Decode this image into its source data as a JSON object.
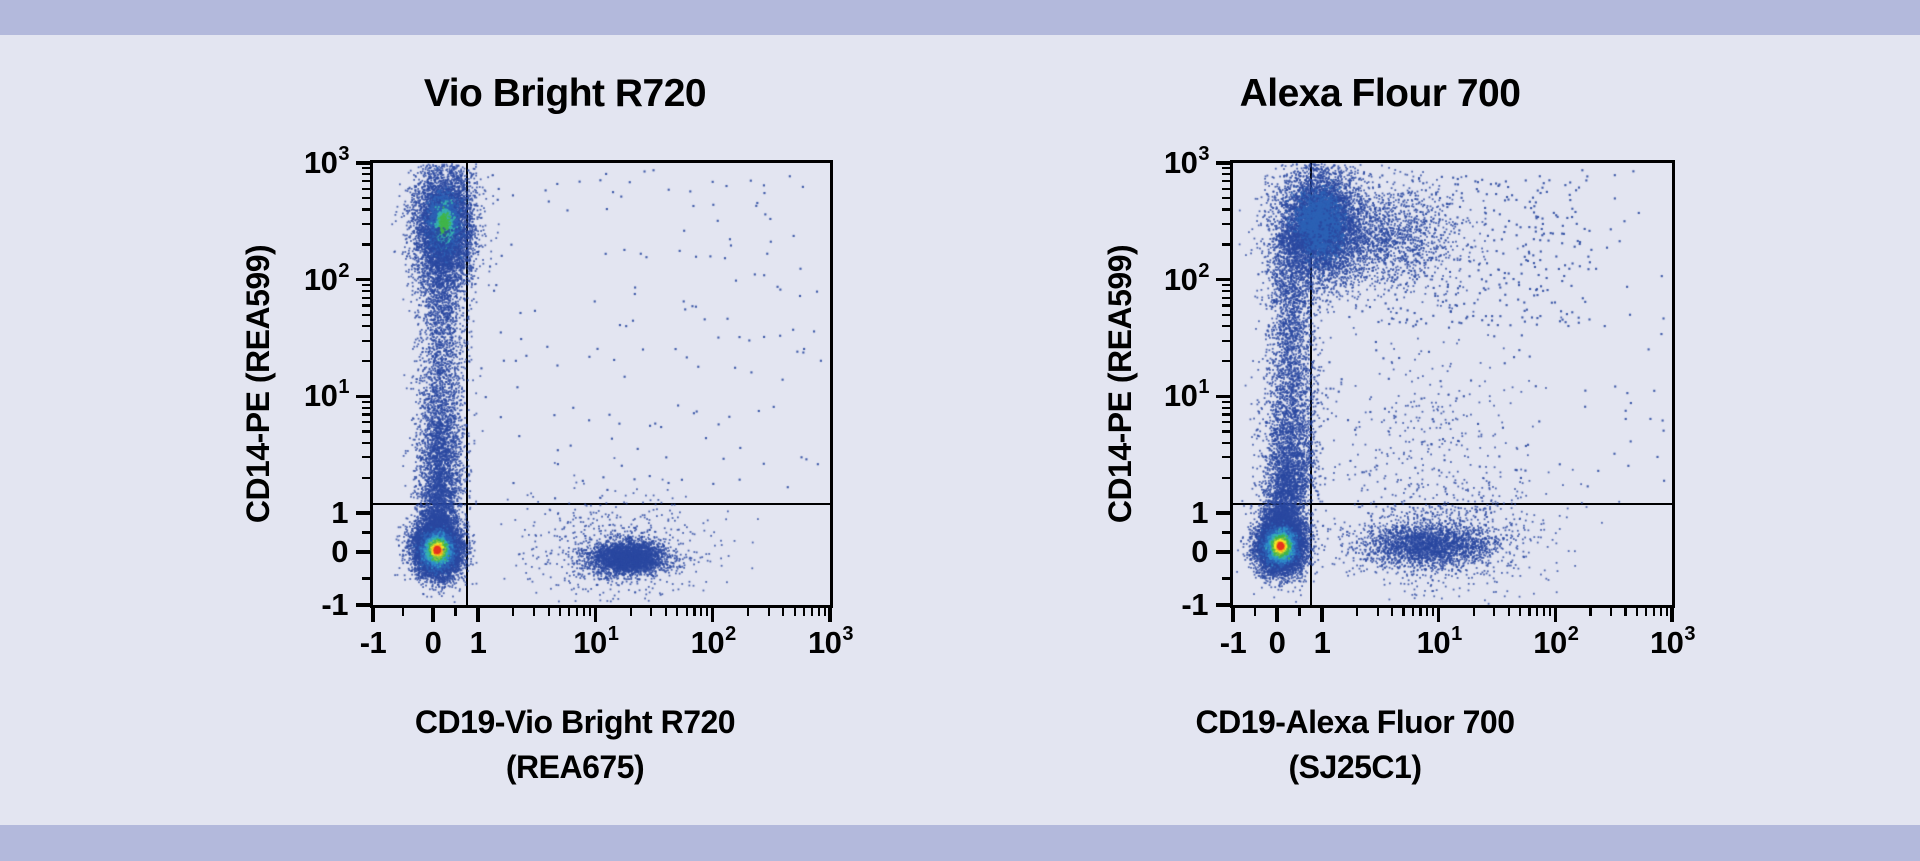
{
  "figure": {
    "background": "#e3e5f1",
    "banner_color": "#b3b9dc",
    "axis_color": "#000000",
    "dot_color": "#2a49a0",
    "density_scale": [
      "#2a49a0",
      "#2d62b5",
      "#2f8ecb",
      "#37b3b0",
      "#41b54a",
      "#8fc63f",
      "#f3eb27",
      "#f6a21f",
      "#e8351f"
    ]
  },
  "chart_data": [
    {
      "type": "scatter",
      "flavor": "flow-cytometry-density-dot-plot",
      "title": "Vio Bright R720",
      "xlabel_lines": [
        "CD19-Vio Bright R720",
        "(REA675)"
      ],
      "ylabel": "CD14-PE (REA599)",
      "scale": "biexponential",
      "x_range": [
        -1,
        1000
      ],
      "y_range": [
        -1,
        1000
      ],
      "grid": false,
      "legend": false,
      "x_ticks": [
        {
          "label": "-1",
          "value": -1
        },
        {
          "label": "0",
          "value": 0
        },
        {
          "label": "1",
          "value": 1
        },
        {
          "label": "10",
          "sup": "1",
          "value": 10
        },
        {
          "label": "10",
          "sup": "2",
          "value": 100
        },
        {
          "label": "10",
          "sup": "3",
          "value": 1000
        }
      ],
      "y_ticks": [
        {
          "label": "-1",
          "value": -1
        },
        {
          "label": "0",
          "value": 0
        },
        {
          "label": "1",
          "value": 1
        },
        {
          "label": "10",
          "sup": "1",
          "value": 10
        },
        {
          "label": "10",
          "sup": "2",
          "value": 100
        },
        {
          "label": "10",
          "sup": "3",
          "value": 1000
        }
      ],
      "quadrant_gates": {
        "x": 0.76,
        "y": 1.2
      },
      "populations": [
        {
          "name": "cd14-pos-monocytes",
          "shape": "gauss",
          "center": [
            0.25,
            300
          ],
          "sigma": [
            0.13,
            0.26
          ],
          "count": 5200,
          "core": "teal"
        },
        {
          "name": "cd14-smear-column",
          "shape": "column",
          "x_center": 0.18,
          "x_sigma": 0.1,
          "y_span": [
            1.4,
            280
          ],
          "count": 2900
        },
        {
          "name": "smear-base",
          "shape": "gauss",
          "center": [
            0.15,
            2.5
          ],
          "sigma": [
            0.1,
            0.3
          ],
          "count": 1100
        },
        {
          "name": "cluster-neck",
          "shape": "gauss",
          "center": [
            0.12,
            0.75
          ],
          "sigma": [
            0.085,
            0.17
          ],
          "count": 1700
        },
        {
          "name": "double-negative-lymphocytes",
          "shape": "gauss",
          "center": [
            0.1,
            0.05
          ],
          "sigma": [
            0.1,
            0.115
          ],
          "count": 7500,
          "core": "hot"
        },
        {
          "name": "cd19-pos-b-cells",
          "shape": "gauss",
          "center": [
            19,
            -0.12
          ],
          "sigma": [
            0.16,
            0.07
          ],
          "count": 3200
        },
        {
          "name": "b-cell-halo",
          "shape": "gauss",
          "center": [
            15,
            0.1
          ],
          "sigma": [
            0.4,
            0.22
          ],
          "count": 600
        },
        {
          "name": "sparse-events",
          "shape": "uniform",
          "x_span": [
            0.9,
            950
          ],
          "y_span": [
            1.2,
            900
          ],
          "count": 150
        }
      ]
    },
    {
      "type": "scatter",
      "flavor": "flow-cytometry-density-dot-plot",
      "title": "Alexa Flour 700",
      "xlabel_lines": [
        "CD19-Alexa Fluor 700",
        "(SJ25C1)"
      ],
      "ylabel": "CD14-PE (REA599)",
      "scale": "biexponential",
      "x_range": [
        -1,
        1000
      ],
      "y_range": [
        -1,
        1000
      ],
      "grid": false,
      "legend": false,
      "x_ticks": [
        {
          "label": "-1",
          "value": -1
        },
        {
          "label": "0",
          "value": 0
        },
        {
          "label": "1",
          "value": 1
        },
        {
          "label": "10",
          "sup": "1",
          "value": 10
        },
        {
          "label": "10",
          "sup": "2",
          "value": 100
        },
        {
          "label": "10",
          "sup": "3",
          "value": 1000
        }
      ],
      "y_ticks": [
        {
          "label": "-1",
          "value": -1
        },
        {
          "label": "0",
          "value": 0
        },
        {
          "label": "1",
          "value": 1
        },
        {
          "label": "10",
          "sup": "1",
          "value": 10
        },
        {
          "label": "10",
          "sup": "2",
          "value": 100
        },
        {
          "label": "10",
          "sup": "3",
          "value": 1000
        }
      ],
      "quadrant_gates": {
        "x": 0.76,
        "y": 1.2
      },
      "populations": [
        {
          "name": "cd14-pos-monocytes",
          "shape": "gauss",
          "center": [
            0.95,
            300
          ],
          "sigma": [
            0.18,
            0.24
          ],
          "count": 6000,
          "core": "mild"
        },
        {
          "name": "monocyte-tail",
          "shape": "gauss",
          "center": [
            3.5,
            230
          ],
          "sigma": [
            0.33,
            0.22
          ],
          "count": 1600
        },
        {
          "name": "monocyte-spray",
          "shape": "uniform",
          "x_span": [
            3,
            200
          ],
          "y_span": [
            40,
            800
          ],
          "count": 280
        },
        {
          "name": "cd14-smear-column",
          "shape": "column",
          "x_center": 0.33,
          "x_sigma": 0.11,
          "y_span": [
            1.4,
            250
          ],
          "count": 3200
        },
        {
          "name": "smear-base",
          "shape": "gauss",
          "center": [
            0.25,
            2.2
          ],
          "sigma": [
            0.11,
            0.32
          ],
          "count": 1200
        },
        {
          "name": "cluster-neck",
          "shape": "gauss",
          "center": [
            0.15,
            0.75
          ],
          "sigma": [
            0.09,
            0.17
          ],
          "count": 1700
        },
        {
          "name": "double-negative-lymphocytes",
          "shape": "gauss",
          "center": [
            0.08,
            0.15
          ],
          "sigma": [
            0.1,
            0.115
          ],
          "count": 7500,
          "core": "hot"
        },
        {
          "name": "cd19-pos-b-cells",
          "shape": "gauss",
          "center": [
            8,
            0.18
          ],
          "sigma": [
            0.28,
            0.09
          ],
          "count": 2300
        },
        {
          "name": "b-cell-halo",
          "shape": "gauss",
          "center": [
            12,
            0.35
          ],
          "sigma": [
            0.45,
            0.25
          ],
          "count": 800
        },
        {
          "name": "mid-scatter",
          "shape": "gauss",
          "center": [
            8,
            4
          ],
          "sigma": [
            0.4,
            0.5
          ],
          "count": 300
        },
        {
          "name": "sparse-events",
          "shape": "uniform",
          "x_span": [
            1,
            900
          ],
          "y_span": [
            1.5,
            900
          ],
          "count": 140
        }
      ]
    }
  ]
}
